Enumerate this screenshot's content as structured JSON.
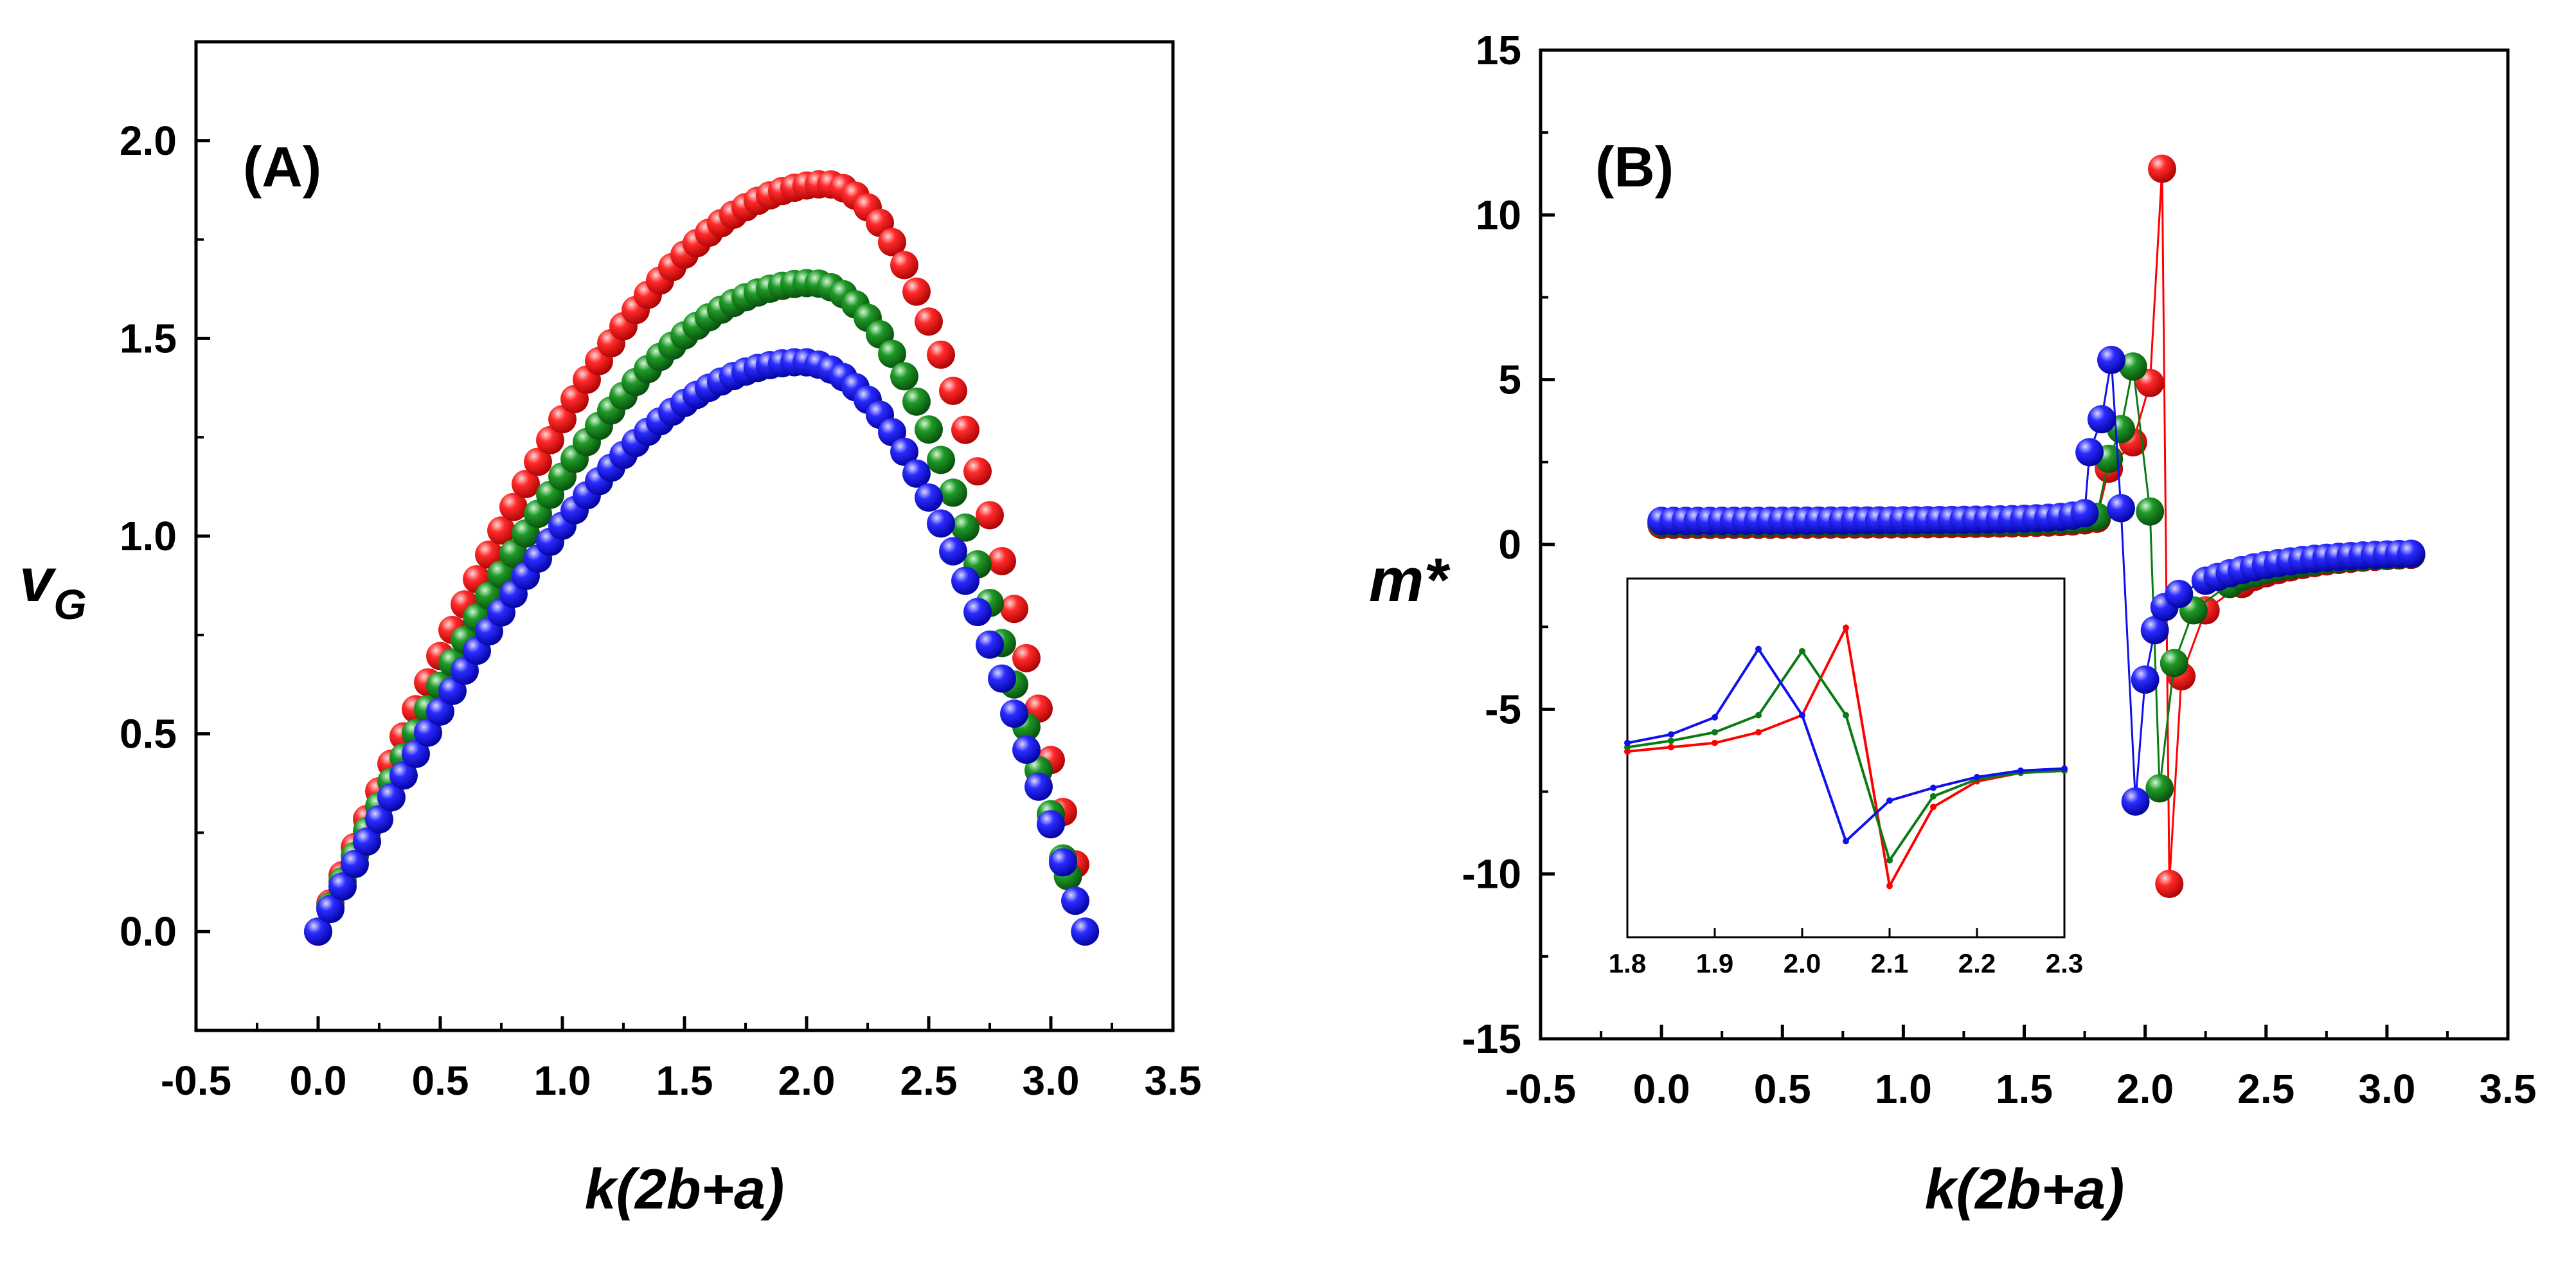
{
  "figure": {
    "colors": {
      "red": "#ff0000",
      "green": "#0a7a12",
      "blue": "#1010ee"
    },
    "series_names": [
      "red",
      "green",
      "blue"
    ]
  },
  "chart_data": [
    {
      "type": "scatter",
      "panel_label": "(A)",
      "title": "",
      "xlabel": "k(2b+a)",
      "ylabel_main": "v",
      "ylabel_sub": "G",
      "xlim": [
        -0.5,
        3.5
      ],
      "ylim": [
        -0.25,
        2.25
      ],
      "xticks": [
        "-0.5",
        "0.0",
        "0.5",
        "1.0",
        "1.5",
        "2.0",
        "2.5",
        "3.0",
        "3.5"
      ],
      "xtick_values": [
        -0.5,
        0.0,
        0.5,
        1.0,
        1.5,
        2.0,
        2.5,
        3.0,
        3.5
      ],
      "yticks": [
        "0.0",
        "0.5",
        "1.0",
        "1.5",
        "2.0"
      ],
      "ytick_values": [
        0.0,
        0.5,
        1.0,
        1.5,
        2.0
      ],
      "series": [
        {
          "name": "red",
          "color": "#ff0000",
          "peak_x": 2.08,
          "peak_y": 1.89,
          "end_x": 3.1,
          "end_y": 0.17
        },
        {
          "name": "green",
          "color": "#0a7a12",
          "peak_x": 2.02,
          "peak_y": 1.64,
          "end_x": 3.07,
          "end_y": 0.14
        },
        {
          "name": "blue",
          "color": "#1010ee",
          "peak_x": 1.98,
          "peak_y": 1.44,
          "end_x": 3.14,
          "end_y": 0.0
        }
      ],
      "point_step": 0.05
    },
    {
      "type": "scatter",
      "panel_label": "(B)",
      "title": "",
      "xlabel": "k(2b+a)",
      "ylabel": "m*",
      "xlim": [
        -0.5,
        3.5
      ],
      "ylim": [
        -15,
        15
      ],
      "xticks": [
        "-0.5",
        "0.0",
        "0.5",
        "1.0",
        "1.5",
        "2.0",
        "2.5",
        "3.0",
        "3.5"
      ],
      "xtick_values": [
        -0.5,
        0.0,
        0.5,
        1.0,
        1.5,
        2.0,
        2.5,
        3.0,
        3.5
      ],
      "yticks": [
        "-15",
        "-10",
        "-5",
        "0",
        "5",
        "10",
        "15"
      ],
      "ytick_values": [
        -15,
        -10,
        -5,
        0,
        5,
        10,
        15
      ],
      "series": [
        {
          "name": "red",
          "color": "#ff0000",
          "x": [
            1.85,
            1.95,
            2.02,
            2.07,
            2.1,
            2.15,
            2.25,
            2.4
          ],
          "y": [
            2.3,
            3.1,
            4.9,
            11.4,
            -10.3,
            -4.0,
            -2.0,
            -1.2
          ]
        },
        {
          "name": "green",
          "color": "#0a7a12",
          "x": [
            1.85,
            1.9,
            1.95,
            2.02,
            2.06,
            2.12,
            2.2,
            2.35
          ],
          "y": [
            2.6,
            3.5,
            5.4,
            1.0,
            -7.4,
            -3.6,
            -2.0,
            -1.2
          ]
        },
        {
          "name": "blue",
          "color": "#1010ee",
          "x": [
            1.77,
            1.82,
            1.86,
            1.9,
            1.96,
            2.0,
            2.04,
            2.08,
            2.14,
            2.25
          ],
          "y": [
            2.8,
            3.8,
            5.6,
            1.1,
            -7.8,
            -4.1,
            -2.6,
            -1.9,
            -1.5,
            -1.1
          ]
        }
      ],
      "inset": {
        "xticks": [
          "1.8",
          "1.9",
          "2.0",
          "2.1",
          "2.2",
          "2.3"
        ],
        "xtick_values": [
          1.8,
          1.9,
          2.0,
          2.1,
          2.2,
          2.3
        ],
        "xlim": [
          1.8,
          2.3
        ],
        "ylim": [
          -10,
          5
        ],
        "series": [
          {
            "name": "red",
            "color": "#ff0000",
            "x": [
              1.8,
              1.85,
              1.9,
              1.95,
              2.0,
              2.05,
              2.1,
              2.15,
              2.2,
              2.25,
              2.3
            ],
            "y": [
              -2.2,
              -2.0,
              -1.8,
              -1.3,
              -0.5,
              3.6,
              -8.5,
              -4.8,
              -3.6,
              -3.2,
              -3.1
            ]
          },
          {
            "name": "green",
            "color": "#0a7a12",
            "x": [
              1.8,
              1.85,
              1.9,
              1.95,
              2.0,
              2.05,
              2.1,
              2.15,
              2.2,
              2.25,
              2.3
            ],
            "y": [
              -2.0,
              -1.7,
              -1.3,
              -0.5,
              2.5,
              -0.5,
              -7.3,
              -4.3,
              -3.5,
              -3.2,
              -3.1
            ]
          },
          {
            "name": "blue",
            "color": "#1010ee",
            "x": [
              1.8,
              1.85,
              1.9,
              1.95,
              2.0,
              2.05,
              2.1,
              2.15,
              2.2,
              2.25,
              2.3
            ],
            "y": [
              -1.8,
              -1.4,
              -0.6,
              2.6,
              -0.5,
              -6.4,
              -4.5,
              -3.9,
              -3.4,
              -3.1,
              -3.0
            ]
          }
        ]
      }
    }
  ]
}
